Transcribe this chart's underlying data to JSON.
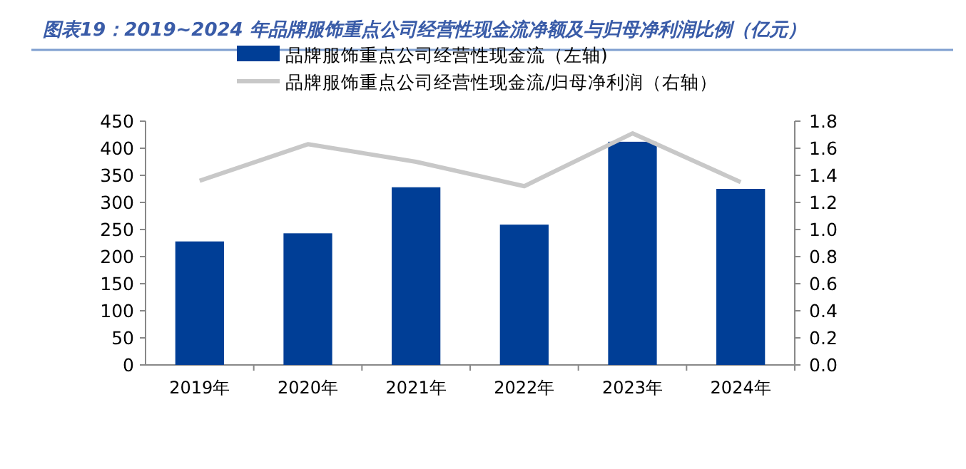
{
  "chart_data": {
    "type": "bar",
    "title": "图表19：2019~2024 年品牌服饰重点公司经营性现金流净额及与归母净利润比例（亿元）",
    "categories": [
      "2019年",
      "2020年",
      "2021年",
      "2022年",
      "2023年",
      "2024年"
    ],
    "series": [
      {
        "name": "品牌服饰重点公司经营性现金流（左轴)",
        "color": "#003e96",
        "values": [
          228,
          243,
          328,
          259,
          412,
          325
        ]
      },
      {
        "name": "品牌服饰重点公司经营性现金流/归母净利润（右轴）",
        "type": "line",
        "axis": "y2",
        "color": "#c8c8c8",
        "values": [
          1.36,
          1.63,
          1.5,
          1.32,
          1.71,
          1.35
        ]
      }
    ],
    "ylim": [
      0,
      450
    ],
    "yticks": [
      0,
      50,
      100,
      150,
      200,
      250,
      300,
      350,
      400,
      450
    ],
    "y2lim": [
      0,
      1.8
    ],
    "y2ticks": [
      {
        "value": 0,
        "label": "0.0"
      },
      {
        "value": 0.2,
        "label": "0.2"
      },
      {
        "value": 0.4,
        "label": "0.4"
      },
      {
        "value": 0.6,
        "label": "0.6"
      },
      {
        "value": 0.8,
        "label": "0.8"
      },
      {
        "value": 1,
        "label": "1.0"
      },
      {
        "value": 1.2,
        "label": "1.2"
      },
      {
        "value": 1.4,
        "label": "1.4"
      },
      {
        "value": 1.6,
        "label": "1.6"
      },
      {
        "value": 1.8,
        "label": "1.8"
      }
    ],
    "legend": "top",
    "grid": false
  }
}
